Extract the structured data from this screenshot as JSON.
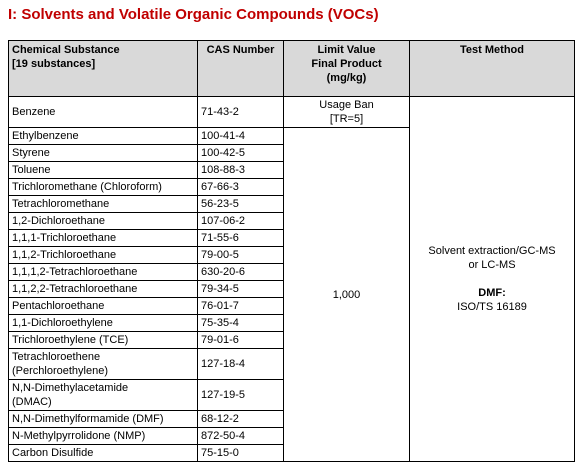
{
  "title": "I: Solvents and Volatile Organic Compounds (VOCs)",
  "table": {
    "header": [
      [
        "Chemical Substance",
        "[19 substances]"
      ],
      [
        "CAS Number"
      ],
      [
        "Limit Value",
        "Final Product",
        "(mg/kg)"
      ],
      [
        "Test Method"
      ]
    ],
    "rows": [
      [
        [
          "Benzene"
        ],
        "71-43-2"
      ],
      [
        [
          "Ethylbenzene"
        ],
        "100-41-4"
      ],
      [
        [
          "Styrene"
        ],
        "100-42-5"
      ],
      [
        [
          "Toluene"
        ],
        "108-88-3"
      ],
      [
        [
          "Trichloromethane (Chloroform)"
        ],
        "67-66-3"
      ],
      [
        [
          "Tetrachloromethane"
        ],
        "56-23-5"
      ],
      [
        [
          "1,2-Dichloroethane"
        ],
        "107-06-2"
      ],
      [
        [
          "1,1,1-Trichloroethane"
        ],
        "71-55-6"
      ],
      [
        [
          "1,1,2-Trichloroethane"
        ],
        "79-00-5"
      ],
      [
        [
          "1,1,1,2-Tetrachloroethane"
        ],
        "630-20-6"
      ],
      [
        [
          "1,1,2,2-Tetrachloroethane"
        ],
        "79-34-5"
      ],
      [
        [
          "Pentachloroethane"
        ],
        "76-01-7"
      ],
      [
        [
          "1,1-Dichloroethylene"
        ],
        "75-35-4"
      ],
      [
        [
          "Trichloroethylene (TCE)"
        ],
        "79-01-6"
      ],
      [
        [
          "Tetrachloroethene",
          "(Perchloroethylene)"
        ],
        "127-18-4"
      ],
      [
        [
          "N,N-Dimethylacetamide",
          "(DMAC)"
        ],
        "127-19-5"
      ],
      [
        [
          "N,N-Dimethylformamide (DMF)"
        ],
        "68-12-2"
      ],
      [
        [
          "N-Methylpyrrolidone (NMP)"
        ],
        "872-50-4"
      ],
      [
        [
          "Carbon Disulfide"
        ],
        "75-15-0"
      ]
    ],
    "benzene_limit": [
      "Usage Ban",
      "[TR=5]"
    ],
    "limit": "1,000",
    "test_method": {
      "lines": [
        "Solvent extraction/GC-MS",
        "or LC-MS"
      ],
      "label": "DMF:",
      "standard": "ISO/TS 16189"
    }
  }
}
